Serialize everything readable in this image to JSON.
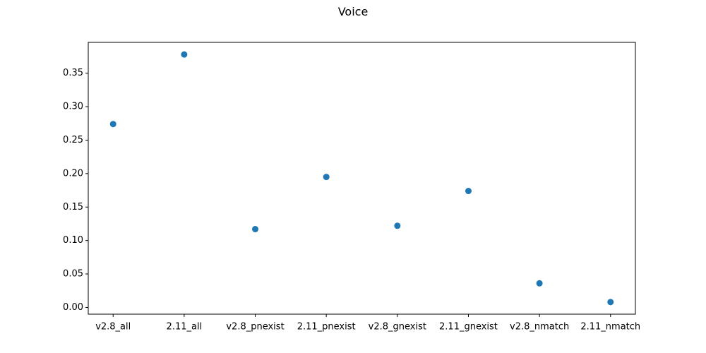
{
  "chart_data": {
    "type": "scatter",
    "title": "Voice",
    "xlabel": "",
    "ylabel": "",
    "categories": [
      "v2.8_all",
      "2.11_all",
      "v2.8_pnexist",
      "2.11_pnexist",
      "v2.8_gnexist",
      "2.11_gnexist",
      "v2.8_nmatch",
      "2.11_nmatch"
    ],
    "values": [
      0.274,
      0.378,
      0.117,
      0.195,
      0.122,
      0.174,
      0.036,
      0.008
    ],
    "ylim": [
      -0.0101,
      0.3961
    ],
    "yticks": [
      0.0,
      0.05,
      0.1,
      0.15,
      0.2,
      0.25,
      0.3,
      0.35
    ],
    "ytick_labels": [
      "0.00",
      "0.05",
      "0.10",
      "0.15",
      "0.20",
      "0.25",
      "0.30",
      "0.35"
    ],
    "grid": false,
    "legend": "none",
    "marker_color": "#1f77b4"
  }
}
